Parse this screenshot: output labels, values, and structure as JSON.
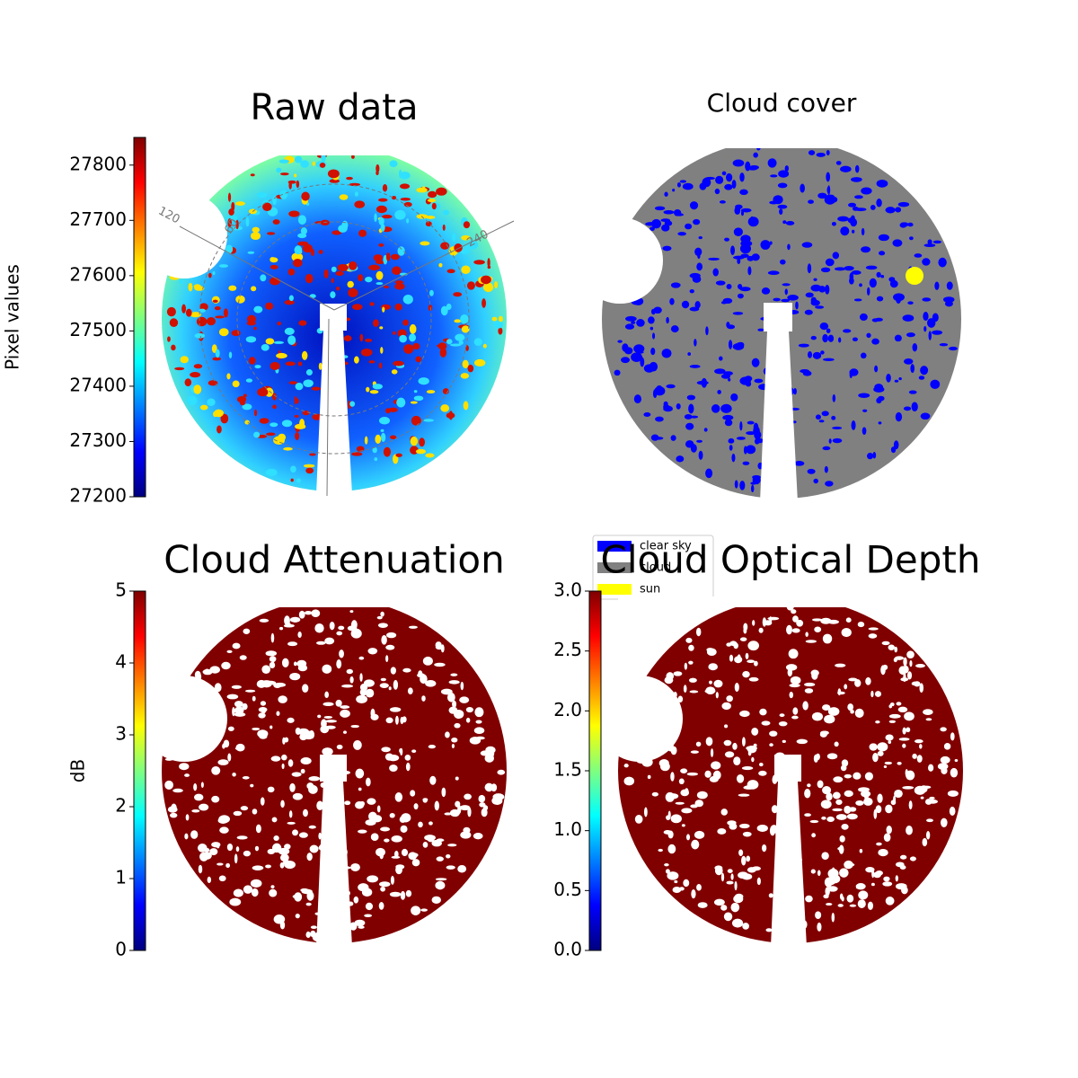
{
  "chart_data": [
    {
      "type": "image",
      "title": "Raw data",
      "colorbar": {
        "label": "Pixel values",
        "colormap": "jet",
        "lim": [
          27200,
          27850
        ],
        "ticks": [
          27200,
          27300,
          27400,
          27500,
          27600,
          27700,
          27800
        ]
      },
      "annotations": [
        "120",
        "60",
        "240"
      ]
    },
    {
      "type": "image",
      "title": "Cloud cover",
      "legend": "lower left",
      "series": [
        {
          "name": "clear sky",
          "color": "#0000ff"
        },
        {
          "name": "cloud",
          "color": "#808080"
        },
        {
          "name": "sun",
          "color": "#ffff00"
        }
      ]
    },
    {
      "type": "image",
      "title": "Cloud Attenuation",
      "colorbar": {
        "label": "dB",
        "colormap": "jet",
        "lim": [
          0,
          5
        ],
        "ticks": [
          0,
          1,
          2,
          3,
          4,
          5
        ]
      }
    },
    {
      "type": "image",
      "title": "Cloud Optical Depth",
      "colorbar": {
        "colormap": "jet",
        "lim": [
          0,
          3
        ],
        "ticks": [
          {
            "value": 0,
            "label": "0.0"
          },
          0.5,
          {
            "value": 1,
            "label": "1.0"
          },
          1.5,
          {
            "value": 2,
            "label": "2.0"
          },
          2.5,
          {
            "value": 3,
            "label": "3.0"
          }
        ]
      }
    }
  ]
}
